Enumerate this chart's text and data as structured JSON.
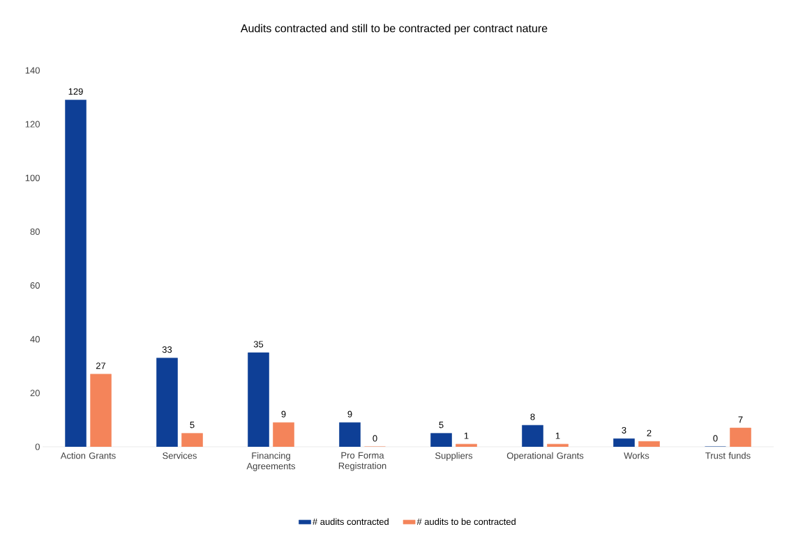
{
  "chart_data": {
    "type": "bar",
    "title": "Audits contracted and still to be contracted per contract nature",
    "categories": [
      "Action Grants",
      "Services",
      "Financing Agreements",
      "Pro Forma Registration",
      "Suppliers",
      "Operational Grants",
      "Works",
      "Trust funds"
    ],
    "series": [
      {
        "name": "# audits contracted",
        "color": "#0e3f96",
        "values": [
          129,
          33,
          35,
          9,
          5,
          8,
          3,
          0
        ]
      },
      {
        "name": "# audits to be contracted",
        "color": "#f4845a",
        "values": [
          27,
          5,
          9,
          0,
          1,
          1,
          2,
          7
        ]
      }
    ],
    "ylim": [
      0,
      140
    ],
    "yticks": [
      0,
      20,
      40,
      60,
      80,
      100,
      120,
      140
    ],
    "data_labels": true,
    "legend": "bottom",
    "grid": false
  }
}
